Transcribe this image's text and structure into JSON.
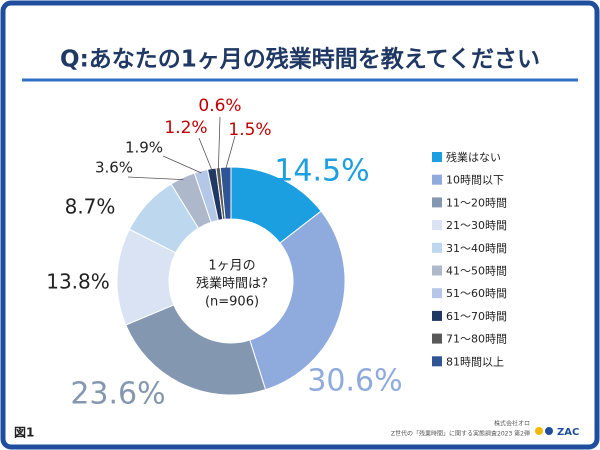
{
  "chart_data": {
    "type": "donut",
    "title": "Q:あなたの1ヶ月の残業時間を教えてください",
    "center_text": [
      "1ヶ月の",
      "残業時間は?",
      "(n=906)"
    ],
    "categories": [
      "残業はない",
      "10時間以下",
      "11～20時間",
      "21～30時間",
      "31～40時間",
      "41～50時間",
      "51～60時間",
      "61～70時間",
      "71～80時間",
      "81時間以上"
    ],
    "values": [
      14.5,
      30.6,
      23.6,
      13.8,
      8.7,
      3.6,
      1.9,
      1.2,
      0.6,
      1.5
    ],
    "value_labels": [
      "14.5%",
      "30.6%",
      "23.6%",
      "13.8%",
      "8.7%",
      "3.6%",
      "1.9%",
      "1.2%",
      "0.6%",
      "1.5%"
    ],
    "colors": [
      "#1b9fe0",
      "#8faadc",
      "#8497b0",
      "#dae3f3",
      "#bdd7ee",
      "#adb9ca",
      "#b4c7e7",
      "#203864",
      "#595959",
      "#2f5597"
    ],
    "label_colors": [
      "#1b9fe0",
      "#8faadc",
      "#8497b0",
      "#222222",
      "#222222",
      "#222222",
      "#222222",
      "#c00000",
      "#c00000",
      "#c00000"
    ]
  },
  "footer": {
    "figure": "図1",
    "company": "株式会社オロ",
    "source": "Z世代の「残業時間」に関する実態調査2023 第2弾",
    "logo": "ZAC"
  }
}
